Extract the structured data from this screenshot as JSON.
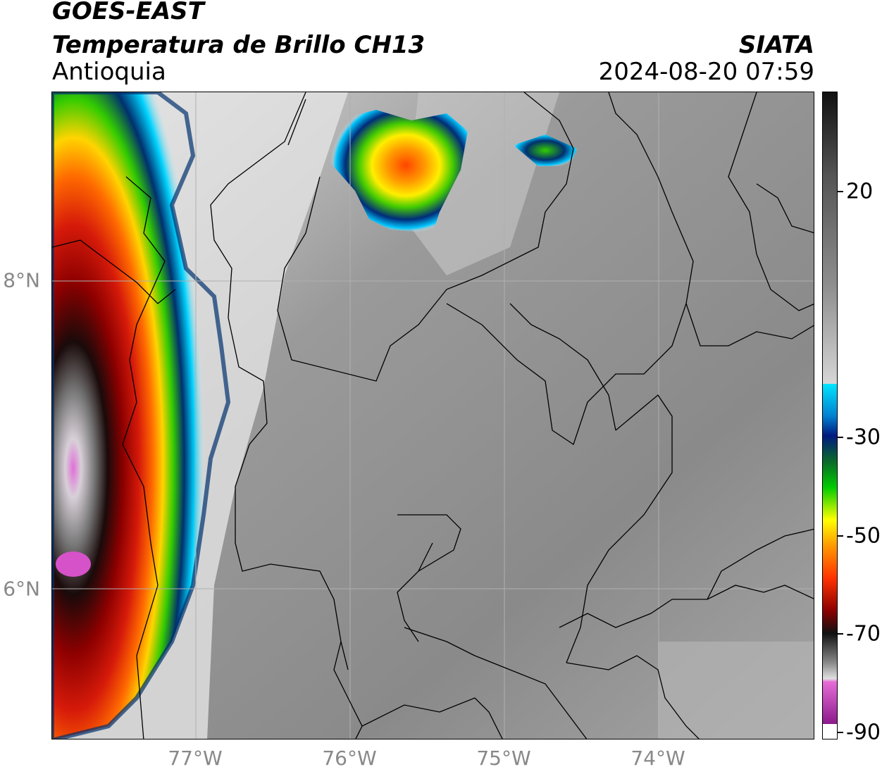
{
  "header": {
    "satellite": "GOES-EAST",
    "product": "Temperatura de Brillo CH13",
    "region": "Antioquia",
    "agency": "SIATA",
    "datetime": "2024-08-20 07:59"
  },
  "map": {
    "lat_labels": [
      "8°N",
      "6°N"
    ],
    "lon_labels": [
      "77°W",
      "76°W",
      "75°W",
      "74°W"
    ],
    "colors": {
      "land_gray": "#8a8a8a",
      "cold_cloud_red": "#d11c0a",
      "overshoot_magenta": "#d652c8",
      "boundary_lines": "#000000",
      "grid_lines": "#b0b0b0"
    }
  },
  "colorbar": {
    "tick_labels": [
      "20",
      "-30",
      "-50",
      "-70",
      "-90"
    ],
    "units": "",
    "colors": [
      "#ffffff",
      "#c063c4",
      "#d9d9d9",
      "#1a1a1a",
      "#8c0000",
      "#ff3300",
      "#ff9900",
      "#ffff00",
      "#00cc00",
      "#00308c",
      "#00e5ff",
      "#f2f2f2",
      "#111111"
    ]
  }
}
